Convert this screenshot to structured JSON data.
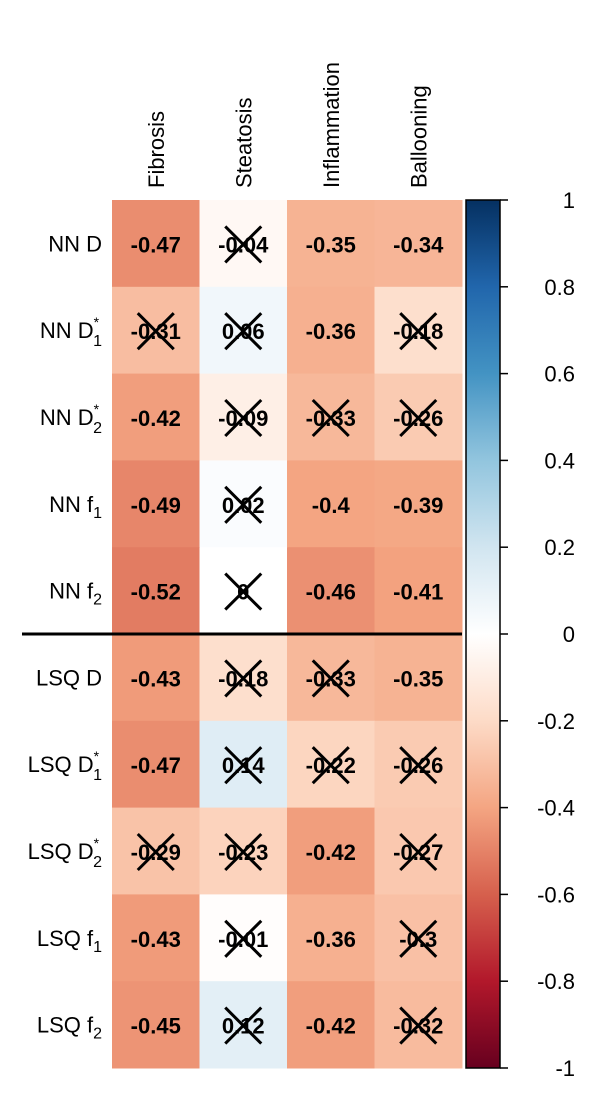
{
  "chart_data": {
    "type": "heatmap",
    "columns": [
      "Fibrosis",
      "Steatosis",
      "Inflammation",
      "Ballooning"
    ],
    "rows": [
      {
        "key": "nn_d",
        "label": "NN D",
        "sub": "",
        "sup": ""
      },
      {
        "key": "nn_d1",
        "label": "NN D",
        "sub": "1",
        "sup": "*"
      },
      {
        "key": "nn_d2",
        "label": "NN D",
        "sub": "2",
        "sup": "*"
      },
      {
        "key": "nn_f1",
        "label": "NN f",
        "sub": "1",
        "sup": ""
      },
      {
        "key": "nn_f2",
        "label": "NN f",
        "sub": "2",
        "sup": ""
      },
      {
        "key": "lsq_d",
        "label": "LSQ D",
        "sub": "",
        "sup": ""
      },
      {
        "key": "lsq_d1",
        "label": "LSQ D",
        "sub": "1",
        "sup": "*"
      },
      {
        "key": "lsq_d2",
        "label": "LSQ D",
        "sub": "2",
        "sup": "*"
      },
      {
        "key": "lsq_f1",
        "label": "LSQ f",
        "sub": "1",
        "sup": ""
      },
      {
        "key": "lsq_f2",
        "label": "LSQ f",
        "sub": "2",
        "sup": ""
      }
    ],
    "values": [
      [
        -0.47,
        -0.04,
        -0.35,
        -0.34
      ],
      [
        -0.31,
        0.06,
        -0.36,
        -0.18
      ],
      [
        -0.42,
        -0.09,
        -0.33,
        -0.26
      ],
      [
        -0.49,
        0.02,
        -0.4,
        -0.39
      ],
      [
        -0.52,
        0,
        -0.46,
        -0.41
      ],
      [
        -0.43,
        -0.18,
        -0.33,
        -0.35
      ],
      [
        -0.47,
        0.14,
        -0.22,
        -0.26
      ],
      [
        -0.29,
        -0.23,
        -0.42,
        -0.27
      ],
      [
        -0.43,
        -0.01,
        -0.36,
        -0.3
      ],
      [
        -0.45,
        0.12,
        -0.42,
        -0.32
      ]
    ],
    "value_labels": [
      [
        "-0.47",
        "-0.04",
        "-0.35",
        "-0.34"
      ],
      [
        "-0.31",
        "0.06",
        "-0.36",
        "-0.18"
      ],
      [
        "-0.42",
        "-0.09",
        "-0.33",
        "-0.26"
      ],
      [
        "-0.49",
        "0.02",
        "-0.4",
        "-0.39"
      ],
      [
        "-0.52",
        "0",
        "-0.46",
        "-0.41"
      ],
      [
        "-0.43",
        "-0.18",
        "-0.33",
        "-0.35"
      ],
      [
        "-0.47",
        "0.14",
        "-0.22",
        "-0.26"
      ],
      [
        "-0.29",
        "-0.23",
        "-0.42",
        "-0.27"
      ],
      [
        "-0.43",
        "-0.01",
        "-0.36",
        "-0.3"
      ],
      [
        "-0.45",
        "0.12",
        "-0.42",
        "-0.32"
      ]
    ],
    "crossed_out": [
      [
        false,
        true,
        false,
        false
      ],
      [
        true,
        true,
        false,
        true
      ],
      [
        false,
        true,
        true,
        true
      ],
      [
        false,
        true,
        false,
        false
      ],
      [
        false,
        true,
        false,
        false
      ],
      [
        false,
        true,
        true,
        false
      ],
      [
        false,
        true,
        true,
        true
      ],
      [
        true,
        true,
        false,
        true
      ],
      [
        false,
        true,
        false,
        true
      ],
      [
        false,
        true,
        false,
        true
      ]
    ],
    "group_separator_after_row": 4,
    "colorbar": {
      "range": [
        -1,
        1
      ],
      "ticks": [
        "1",
        "0.8",
        "0.6",
        "0.4",
        "0.2",
        "0",
        "-0.2",
        "-0.4",
        "-0.6",
        "-0.8",
        "-1"
      ],
      "tick_values": [
        1,
        0.8,
        0.6,
        0.4,
        0.2,
        0,
        -0.2,
        -0.4,
        -0.6,
        -0.8,
        -1
      ],
      "colors": {
        "neg_1": "#67001F",
        "neg_08": "#B2182B",
        "neg_06": "#D6604D",
        "neg_04": "#F4A582",
        "neg_02": "#FDDBC7",
        "zero": "#FFFFFF",
        "pos_02": "#D1E5F0",
        "pos_04": "#92C5DE",
        "pos_06": "#4393C3",
        "pos_08": "#2166AC",
        "pos_1": "#053061"
      }
    },
    "title": "",
    "xlabel": "",
    "ylabel": "",
    "legend": "right"
  }
}
